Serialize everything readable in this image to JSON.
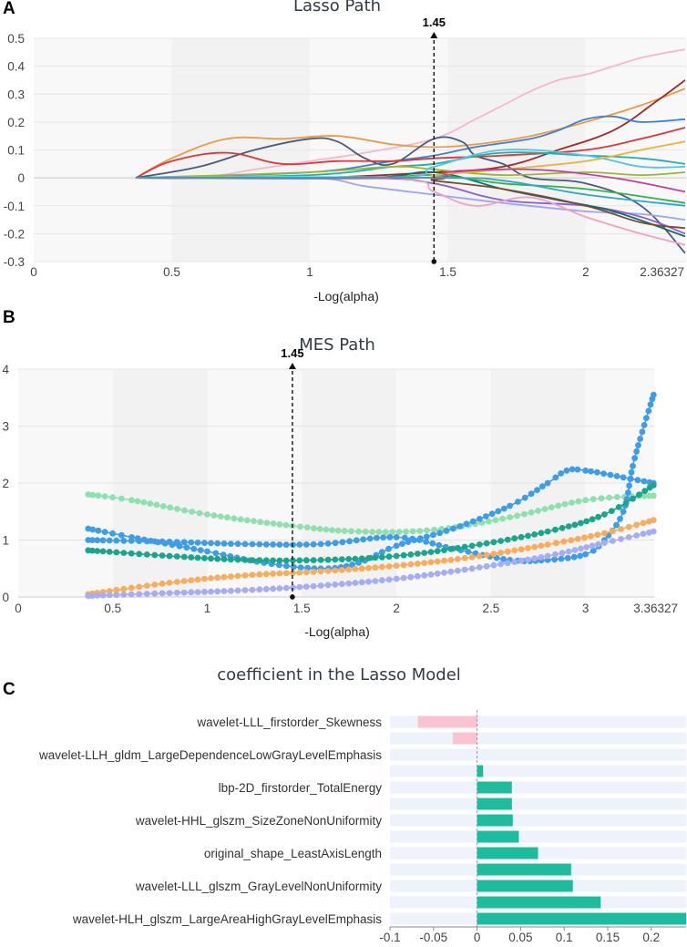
{
  "panels": {
    "a": "A",
    "b": "B",
    "c": "C"
  },
  "chart_data": [
    {
      "type": "line",
      "title": "Lasso Path",
      "xlabel": "-Log(alpha)",
      "xlim": [
        0,
        2.36327
      ],
      "ylim": [
        -0.3,
        0.5
      ],
      "xticks": [
        "0",
        "0.5",
        "1",
        "1.5",
        "2",
        "2.36327"
      ],
      "yticks": [
        "-0.3",
        "-0.2",
        "-0.1",
        "0",
        "0.1",
        "0.2",
        "0.3",
        "0.4",
        "0.5"
      ],
      "marker": {
        "x": 1.45,
        "label": "1.45"
      },
      "series": [
        {
          "name": "pink",
          "color": "#f7b6cc",
          "x": [
            0.37,
            0.6,
            0.8,
            1.0,
            1.2,
            1.45,
            1.6,
            1.7,
            1.8,
            1.9,
            2.0,
            2.1,
            2.2,
            2.3,
            2.36
          ],
          "y": [
            0,
            0,
            0.03,
            0.06,
            0.09,
            0.14,
            0.21,
            0.26,
            0.31,
            0.35,
            0.37,
            0.4,
            0.43,
            0.45,
            0.46
          ]
        },
        {
          "name": "orange",
          "color": "#ee9a45",
          "x": [
            0.37,
            0.5,
            0.7,
            0.9,
            1.1,
            1.3,
            1.45,
            1.6,
            1.8,
            2.0,
            2.2,
            2.36
          ],
          "y": [
            0,
            0.07,
            0.14,
            0.14,
            0.15,
            0.12,
            0.11,
            0.12,
            0.15,
            0.2,
            0.26,
            0.32
          ]
        },
        {
          "name": "dark-red",
          "color": "#a32a2a",
          "x": [
            0.37,
            1.0,
            1.45,
            1.7,
            1.9,
            2.1,
            2.25,
            2.36
          ],
          "y": [
            0,
            0,
            0.02,
            0.04,
            0.1,
            0.17,
            0.27,
            0.35
          ]
        },
        {
          "name": "blue",
          "color": "#3d7fd6",
          "x": [
            0.37,
            1.0,
            1.3,
            1.45,
            1.6,
            1.8,
            1.9,
            2.0,
            2.1,
            2.2,
            2.36
          ],
          "y": [
            0,
            0.02,
            0.06,
            0.08,
            0.11,
            0.14,
            0.17,
            0.21,
            0.22,
            0.2,
            0.21
          ]
        },
        {
          "name": "slate",
          "color": "#4a5a7a",
          "x": [
            0.37,
            0.6,
            0.8,
            1.0,
            1.1,
            1.2,
            1.3,
            1.45,
            1.55,
            1.6,
            1.7,
            1.8,
            2.0,
            2.2,
            2.36
          ],
          "y": [
            0,
            0.04,
            0.1,
            0.14,
            0.13,
            0.07,
            0.05,
            0.14,
            0.13,
            0.08,
            0.05,
            0.0,
            -0.02,
            -0.1,
            -0.27
          ]
        },
        {
          "name": "red",
          "color": "#e0353a",
          "x": [
            0.37,
            0.5,
            0.7,
            0.9,
            1.1,
            1.3,
            1.45,
            1.7,
            2.0,
            2.2,
            2.36
          ],
          "y": [
            0,
            0.06,
            0.09,
            0.05,
            0.06,
            0.06,
            0.07,
            0.08,
            0.1,
            0.14,
            0.18
          ]
        },
        {
          "name": "teal",
          "color": "#1fb3a3",
          "x": [
            0.37,
            1.0,
            1.3,
            1.45,
            1.7,
            2.0,
            2.2,
            2.36
          ],
          "y": [
            0,
            0.01,
            0.04,
            0.05,
            0.09,
            0.08,
            0.07,
            0.05
          ]
        },
        {
          "name": "olive",
          "color": "#9cb82a",
          "x": [
            0.37,
            1.0,
            1.3,
            1.45,
            1.7,
            2.0,
            2.2,
            2.36
          ],
          "y": [
            0,
            0.02,
            0.04,
            0.03,
            0.01,
            0.02,
            0.01,
            0.02
          ]
        },
        {
          "name": "lavender",
          "color": "#9aa6f2",
          "x": [
            0.37,
            1.0,
            1.2,
            1.45,
            1.7,
            2.0,
            2.2,
            2.36
          ],
          "y": [
            0,
            0,
            -0.03,
            -0.06,
            -0.09,
            -0.12,
            -0.13,
            -0.15
          ]
        },
        {
          "name": "purple",
          "color": "#8f5fd0",
          "x": [
            0.37,
            1.2,
            1.45,
            1.7,
            2.0,
            2.2,
            2.36
          ],
          "y": [
            0,
            0,
            -0.02,
            -0.08,
            -0.1,
            -0.14,
            -0.2
          ]
        },
        {
          "name": "dark-teal",
          "color": "#0f6e6e",
          "x": [
            0.37,
            1.2,
            1.45,
            1.7,
            1.9,
            2.1,
            2.36
          ],
          "y": [
            0,
            0,
            0.02,
            -0.04,
            -0.08,
            -0.12,
            -0.21
          ]
        },
        {
          "name": "green",
          "color": "#34b24a",
          "x": [
            0.37,
            1.2,
            1.45,
            1.7,
            2.0,
            2.36
          ],
          "y": [
            0,
            0,
            0.01,
            -0.02,
            -0.04,
            -0.09
          ]
        },
        {
          "name": "light-pink",
          "color": "#f4a0c0",
          "x": [
            0.37,
            1.3,
            1.45,
            1.6,
            1.8,
            2.0,
            2.2,
            2.36
          ],
          "y": [
            0,
            0,
            -0.05,
            -0.1,
            -0.07,
            -0.14,
            -0.2,
            -0.24
          ]
        },
        {
          "name": "sky",
          "color": "#4fc3e8",
          "x": [
            0.37,
            1.3,
            1.45,
            1.7,
            2.0,
            2.2,
            2.36
          ],
          "y": [
            0,
            0,
            0.04,
            0.1,
            0.08,
            0.04,
            0.04
          ]
        },
        {
          "name": "gold",
          "color": "#f0b13a",
          "x": [
            0.37,
            1.4,
            1.45,
            1.7,
            2.0,
            2.2,
            2.36
          ],
          "y": [
            0,
            0,
            0.01,
            0.03,
            0.06,
            0.1,
            0.13
          ]
        },
        {
          "name": "brown",
          "color": "#7b4b2a",
          "x": [
            0.37,
            1.4,
            1.45,
            1.7,
            2.0,
            2.2,
            2.36
          ],
          "y": [
            0,
            0,
            -0.01,
            -0.04,
            -0.1,
            -0.16,
            -0.18
          ]
        },
        {
          "name": "magenta",
          "color": "#c040a0",
          "x": [
            0.37,
            1.4,
            1.5,
            1.8,
            2.1,
            2.36
          ],
          "y": [
            0,
            0,
            0.02,
            0.03,
            0.0,
            -0.05
          ]
        },
        {
          "name": "cyan",
          "color": "#2aa8c8",
          "x": [
            0.37,
            1.45,
            1.7,
            2.0,
            2.36
          ],
          "y": [
            0,
            0,
            -0.01,
            -0.06,
            -0.1
          ]
        }
      ]
    },
    {
      "type": "scatter",
      "title": "MES Path",
      "xlabel": "-Log(alpha)",
      "xlim": [
        0,
        3.36327
      ],
      "ylim": [
        0,
        4
      ],
      "xticks": [
        "0",
        "0.5",
        "1",
        "1.5",
        "2",
        "2.5",
        "3",
        "3.36327"
      ],
      "yticks": [
        "0",
        "1",
        "2",
        "3",
        "4"
      ],
      "marker": {
        "x": 1.45,
        "label": "1.45"
      },
      "series": [
        {
          "name": "light-green",
          "color": "#8ee0ae",
          "x": [
            0.37,
            0.6,
            1.0,
            1.45,
            1.8,
            2.2,
            2.6,
            3.0,
            3.36
          ],
          "y": [
            1.8,
            1.7,
            1.45,
            1.25,
            1.15,
            1.18,
            1.4,
            1.7,
            1.78
          ]
        },
        {
          "name": "blue-a",
          "color": "#3d9de8",
          "x": [
            0.37,
            0.6,
            1.0,
            1.3,
            1.6,
            1.8,
            2.0,
            2.3,
            2.6,
            2.8,
            2.9,
            3.0,
            3.2,
            3.36
          ],
          "y": [
            1.2,
            1.05,
            0.8,
            0.6,
            0.5,
            0.6,
            0.9,
            1.2,
            1.6,
            2.0,
            2.22,
            2.22,
            2.1,
            2.0
          ]
        },
        {
          "name": "blue-b",
          "color": "#3d9de8",
          "x": [
            0.37,
            0.8,
            1.2,
            1.6,
            2.0,
            2.3,
            2.6,
            2.8,
            3.0,
            3.1,
            3.2,
            3.25,
            3.3,
            3.36
          ],
          "y": [
            1.0,
            0.97,
            0.93,
            0.93,
            1.05,
            0.85,
            0.65,
            0.65,
            0.75,
            1.0,
            1.5,
            2.3,
            2.9,
            3.55
          ]
        },
        {
          "name": "teal",
          "color": "#1aa68c",
          "x": [
            0.37,
            0.8,
            1.2,
            1.6,
            2.0,
            2.4,
            2.8,
            3.1,
            3.36
          ],
          "y": [
            0.82,
            0.72,
            0.65,
            0.65,
            0.72,
            0.9,
            1.15,
            1.45,
            1.96
          ]
        },
        {
          "name": "orange",
          "color": "#f8ad5c",
          "x": [
            0.37,
            0.8,
            1.2,
            1.6,
            2.0,
            2.4,
            2.8,
            3.1,
            3.36
          ],
          "y": [
            0.05,
            0.25,
            0.38,
            0.45,
            0.55,
            0.7,
            0.92,
            1.12,
            1.35
          ]
        },
        {
          "name": "lavender",
          "color": "#a7adf2",
          "x": [
            0.37,
            0.8,
            1.2,
            1.6,
            2.0,
            2.4,
            2.8,
            3.1,
            3.36
          ],
          "y": [
            0.02,
            0.07,
            0.12,
            0.2,
            0.32,
            0.5,
            0.72,
            0.95,
            1.15
          ]
        }
      ]
    },
    {
      "type": "bar",
      "orientation": "horizontal",
      "title": "coefficient in the Lasso Model",
      "xlim": [
        -0.1,
        0.24
      ],
      "xticks": [
        "-0.1",
        "-0.05",
        "0",
        "0.05",
        "0.1",
        "0.15",
        "0.2"
      ],
      "visible_labels": [
        "wavelet-LLL_firstorder_Skewness",
        "wavelet-LLH_gldm_LargeDependenceLowGrayLevelEmphasis",
        "lbp-2D_firstorder_TotalEnergy",
        "wavelet-HHL_glszm_SizeZoneNonUniformity",
        "original_shape_LeastAxisLength",
        "wavelet-LLL_glszm_GrayLevelNonUniformity",
        "wavelet-HLH_glszm_LargeAreaHighGrayLevelEmphasis"
      ],
      "values": [
        -0.068,
        -0.028,
        0,
        0.007,
        0.04,
        0.04,
        0.041,
        0.048,
        0.07,
        0.108,
        0.11,
        0.142,
        0.24
      ],
      "positive_color": "#1ebc9e",
      "negative_color": "#f9c3d2"
    }
  ]
}
